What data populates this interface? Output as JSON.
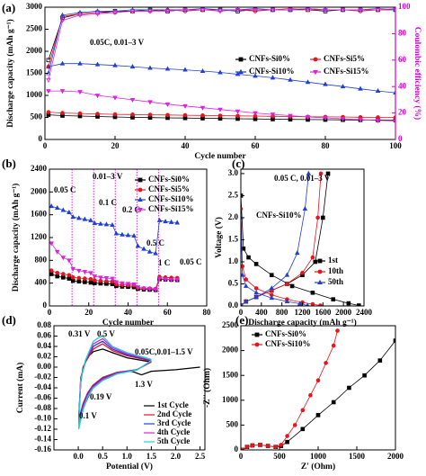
{
  "chart_data": [
    {
      "type": "line",
      "panel_label": "(a)",
      "x_label": "Cycle number",
      "y_label": "Discharge capacity (mAh g⁻¹)",
      "y2_label": "Coulombic efficiency (%)",
      "y2color": "#d000d0",
      "annotations": [
        "0.05C, 0.01–3 V"
      ],
      "xlim": [
        0,
        100
      ],
      "xticks": [
        0,
        20,
        40,
        60,
        80,
        100
      ],
      "ylim": [
        0,
        3000
      ],
      "yticks": [
        0,
        500,
        1000,
        1500,
        2000,
        2500,
        3000
      ],
      "y2lim": [
        0,
        100
      ],
      "y2ticks": [
        0,
        20,
        40,
        60,
        80,
        100
      ],
      "x": [
        1,
        5,
        10,
        15,
        20,
        25,
        30,
        35,
        40,
        45,
        50,
        55,
        60,
        65,
        70,
        75,
        80,
        85,
        90,
        95,
        100
      ],
      "series": [
        {
          "name": "CNFs-Si0%",
          "color": "#000000",
          "marker": "square",
          "values": [
            560,
            540,
            530,
            520,
            510,
            500,
            495,
            490,
            485,
            480,
            475,
            470,
            465,
            460,
            455,
            450,
            448,
            445,
            442,
            440,
            438
          ]
        },
        {
          "name": "CNFs-Si5%",
          "color": "#e8141b",
          "marker": "circle",
          "values": [
            620,
            600,
            590,
            580,
            570,
            565,
            560,
            555,
            550,
            545,
            540,
            535,
            530,
            525,
            520,
            515,
            512,
            510,
            505,
            502,
            500
          ]
        },
        {
          "name": "CNFs-Si10%",
          "color": "#1f3fd6",
          "marker": "triangle-up",
          "values": [
            1650,
            1720,
            1720,
            1700,
            1680,
            1650,
            1620,
            1600,
            1580,
            1550,
            1520,
            1480,
            1440,
            1400,
            1350,
            1300,
            1250,
            1200,
            1150,
            1100,
            1060
          ]
        },
        {
          "name": "CNFs-Si15%",
          "color": "#e020e0",
          "marker": "triangle-down",
          "values": [
            1100,
            1100,
            1080,
            1000,
            950,
            900,
            850,
            800,
            760,
            720,
            680,
            640,
            600,
            570,
            540,
            510,
            490,
            470,
            450,
            430,
            420
          ]
        },
        {
          "axis": "y2",
          "color": "#000000",
          "marker": "square",
          "hollow": true,
          "values": [
            60,
            92,
            95,
            96,
            97,
            97,
            98,
            97,
            98,
            98,
            98,
            97,
            98,
            98,
            98,
            98,
            97,
            98,
            98,
            98,
            98
          ]
        },
        {
          "axis": "y2",
          "color": "#e8141b",
          "marker": "circle",
          "hollow": true,
          "values": [
            55,
            93,
            95,
            96,
            96,
            97,
            97,
            98,
            97,
            98,
            98,
            98,
            97,
            98,
            99,
            98,
            98,
            98,
            97,
            98,
            98
          ]
        },
        {
          "axis": "y2",
          "color": "#1f3fd6",
          "marker": "triangle-up",
          "hollow": true,
          "values": [
            50,
            94,
            96,
            97,
            97,
            98,
            98,
            98,
            98,
            99,
            98,
            98,
            99,
            98,
            98,
            99,
            98,
            98,
            98,
            99,
            98
          ]
        },
        {
          "axis": "y2",
          "color": "#e020e0",
          "marker": "triangle-down",
          "hollow": true,
          "values": [
            45,
            90,
            94,
            95,
            96,
            97,
            97,
            97,
            98,
            98,
            97,
            98,
            98,
            98,
            98,
            99,
            98,
            98,
            98,
            98,
            99
          ]
        }
      ]
    },
    {
      "type": "line",
      "panel_label": "(b)",
      "x_label": "Cycle number",
      "y_label": "Discharge capacity (mAh g⁻¹)",
      "annotations": [
        "0.05 C",
        "0.1 C",
        "0.2 C",
        "0.5 C",
        "1 C",
        "0.05 C",
        "0.01–3 V"
      ],
      "xlim": [
        0,
        80
      ],
      "xticks": [
        0,
        20,
        40,
        60,
        80
      ],
      "ylim": [
        0,
        2400
      ],
      "yticks": [
        0,
        400,
        800,
        1200,
        1600,
        2000,
        2400
      ],
      "vlines": [
        11.5,
        22.5,
        33.5,
        44.5,
        55.5
      ],
      "vline_color": "#e020e0",
      "x": [
        1,
        4,
        7,
        10,
        12,
        15,
        18,
        21,
        23,
        26,
        29,
        32,
        34,
        37,
        40,
        43,
        45,
        48,
        51,
        54,
        56,
        59,
        62,
        65
      ],
      "series": [
        {
          "name": "CNFs-Si0%",
          "color": "#000000",
          "marker": "square",
          "values": [
            560,
            520,
            500,
            480,
            440,
            430,
            420,
            410,
            400,
            395,
            390,
            385,
            350,
            340,
            335,
            330,
            300,
            290,
            285,
            280,
            470,
            465,
            460,
            455
          ]
        },
        {
          "name": "CNFs-Si5%",
          "color": "#e8141b",
          "marker": "circle",
          "values": [
            620,
            580,
            560,
            540,
            500,
            490,
            480,
            470,
            450,
            440,
            435,
            430,
            380,
            370,
            365,
            360,
            320,
            310,
            305,
            300,
            510,
            500,
            495,
            490
          ]
        },
        {
          "name": "CNFs-Si10%",
          "color": "#1f3fd6",
          "marker": "triangle-up",
          "values": [
            1750,
            1720,
            1680,
            1640,
            1560,
            1540,
            1520,
            1500,
            1450,
            1440,
            1430,
            1420,
            1270,
            1250,
            1240,
            1230,
            1050,
            1000,
            950,
            920,
            1500,
            1480,
            1470,
            1460
          ]
        },
        {
          "name": "CNFs-Si15%",
          "color": "#e020e0",
          "marker": "triangle-down",
          "values": [
            1100,
            950,
            850,
            800,
            650,
            620,
            600,
            580,
            520,
            500,
            490,
            480,
            420,
            400,
            390,
            380,
            330,
            310,
            300,
            290,
            480,
            470,
            460,
            460
          ]
        }
      ]
    },
    {
      "type": "line",
      "panel_label": "(c)",
      "x_label": "Discharge capacity (mAh g⁻¹)",
      "y_label": "Voltage (V)",
      "annotations": [
        "0.05 C, 0.01–3 V",
        "CNFs-Si10%"
      ],
      "xlim": [
        0,
        2400
      ],
      "xticks": [
        0,
        400,
        800,
        1200,
        1600,
        2000,
        2400
      ],
      "ylim": [
        0,
        3.1
      ],
      "yticks": [
        {
          "value": 0,
          "label": "0.0"
        },
        0.5,
        {
          "value": 1,
          "label": "1.0"
        },
        1.5,
        {
          "value": 2,
          "label": "2.0"
        },
        2.5,
        {
          "value": 3,
          "label": "3.0"
        }
      ],
      "series": [
        {
          "name": "1st",
          "color": "#000000",
          "marker": "square",
          "x": [
            0,
            50,
            150,
            300,
            600,
            1000,
            1400,
            1800,
            2100,
            2300,
            null,
            0,
            100,
            300,
            600,
            900,
            1200,
            1450,
            1600,
            1700
          ],
          "values": [
            2.5,
            1.3,
            1.1,
            0.95,
            0.7,
            0.45,
            0.3,
            0.15,
            0.06,
            0.01,
            null,
            0.01,
            0.1,
            0.2,
            0.35,
            0.5,
            0.7,
            1.0,
            2.0,
            3.0
          ]
        },
        {
          "name": "10th",
          "color": "#e8141b",
          "marker": "circle",
          "x": [
            0,
            30,
            100,
            300,
            600,
            900,
            1200,
            1400,
            1550,
            null,
            0,
            100,
            300,
            600,
            900,
            1200,
            1400,
            1500,
            1560
          ],
          "values": [
            2.2,
            0.9,
            0.6,
            0.4,
            0.25,
            0.15,
            0.08,
            0.04,
            0.01,
            null,
            0.01,
            0.1,
            0.2,
            0.35,
            0.5,
            0.75,
            1.1,
            2.0,
            3.0
          ]
        },
        {
          "name": "50th",
          "color": "#1f3fd6",
          "marker": "triangle-up",
          "x": [
            0,
            30,
            100,
            300,
            600,
            900,
            1150,
            1300,
            null,
            0,
            100,
            300,
            600,
            900,
            1100,
            1250,
            1320
          ],
          "values": [
            2.0,
            0.7,
            0.45,
            0.3,
            0.18,
            0.1,
            0.05,
            0.01,
            null,
            0.01,
            0.1,
            0.2,
            0.4,
            0.7,
            1.2,
            2.2,
            3.0
          ]
        }
      ]
    },
    {
      "type": "line",
      "panel_label": "(d)",
      "x_label": "Potential (V)",
      "y_label": "Current (mA)",
      "annotations": [
        "0.31 V",
        "0.5 V",
        "1.3 V",
        "0.19 V",
        "0.1 V",
        "0.05C,0.01–1.5 V"
      ],
      "xlim": [
        -0.5,
        2.6
      ],
      "xticks": [
        {
          "value": 0,
          "label": "0.0"
        },
        0.5,
        {
          "value": 1,
          "label": "1.0"
        },
        1.5,
        {
          "value": 2,
          "label": "2.0"
        },
        2.5
      ],
      "ylim": [
        -0.16,
        0.08
      ],
      "yticks": [
        -0.16,
        -0.14,
        -0.12,
        {
          "value": -0.1,
          "label": "-0.10"
        },
        -0.08,
        -0.06,
        -0.04,
        -0.02,
        {
          "value": 0,
          "label": "0.00"
        },
        0.02,
        0.04,
        0.06,
        0.08
      ],
      "series": [
        {
          "name": "1st  Cycle",
          "color": "#000000",
          "x": [
            2.5,
            2.0,
            1.5,
            1.3,
            1.1,
            0.8,
            0.5,
            0.3,
            0.19,
            0.1,
            0.01,
            0.05,
            0.1,
            0.2,
            0.31,
            0.5,
            0.7,
            1.0,
            1.5
          ],
          "values": [
            0.0,
            -0.005,
            -0.008,
            -0.015,
            -0.008,
            -0.01,
            -0.02,
            -0.04,
            -0.06,
            -0.08,
            -0.1,
            -0.03,
            0.0,
            0.02,
            0.03,
            0.035,
            0.028,
            0.018,
            0.01
          ]
        },
        {
          "name": "2nd Cycle",
          "color": "#e8141b",
          "x": [
            1.5,
            1.2,
            0.8,
            0.5,
            0.3,
            0.19,
            0.1,
            0.01,
            0.05,
            0.15,
            0.31,
            0.4,
            0.5,
            0.7,
            1.0,
            1.5
          ],
          "values": [
            0.01,
            -0.005,
            -0.01,
            -0.02,
            -0.035,
            -0.05,
            -0.07,
            -0.1,
            -0.02,
            0.01,
            0.035,
            0.04,
            0.045,
            0.032,
            0.022,
            0.012
          ]
        },
        {
          "name": "3rd Cycle",
          "color": "#1f3fd6",
          "x": [
            1.5,
            1.2,
            0.8,
            0.5,
            0.3,
            0.19,
            0.1,
            0.01,
            0.05,
            0.15,
            0.31,
            0.4,
            0.5,
            0.7,
            1.0,
            1.5
          ],
          "values": [
            0.011,
            -0.005,
            -0.011,
            -0.022,
            -0.037,
            -0.052,
            -0.074,
            -0.105,
            -0.022,
            0.012,
            0.04,
            0.045,
            0.05,
            0.035,
            0.024,
            0.013
          ]
        },
        {
          "name": "4th Cycle",
          "color": "#e020e0",
          "x": [
            1.5,
            1.2,
            0.8,
            0.5,
            0.3,
            0.19,
            0.1,
            0.01,
            0.05,
            0.15,
            0.31,
            0.4,
            0.5,
            0.7,
            1.0,
            1.5
          ],
          "values": [
            0.012,
            -0.006,
            -0.012,
            -0.024,
            -0.039,
            -0.055,
            -0.078,
            -0.11,
            -0.024,
            0.013,
            0.045,
            0.05,
            0.055,
            0.038,
            0.026,
            0.014
          ]
        },
        {
          "name": "5th Cycle",
          "color": "#22d0d0",
          "x": [
            1.5,
            1.2,
            0.8,
            0.5,
            0.3,
            0.19,
            0.1,
            0.01,
            0.05,
            0.15,
            0.31,
            0.4,
            0.5,
            0.7,
            1.0,
            1.5
          ],
          "values": [
            0.013,
            -0.006,
            -0.013,
            -0.026,
            -0.041,
            -0.058,
            -0.082,
            -0.12,
            -0.026,
            0.014,
            0.05,
            0.056,
            0.06,
            0.04,
            0.028,
            0.015
          ]
        }
      ]
    },
    {
      "type": "line",
      "panel_label": "(e)",
      "x_label": "Z' (Ohm)",
      "y_label": "-Z'' (Ohm)",
      "xlim": [
        0,
        2000
      ],
      "xticks": [
        0,
        500,
        1000,
        1500,
        2000
      ],
      "ylim": [
        0,
        2500
      ],
      "yticks": [
        0,
        500,
        1000,
        1500,
        2000,
        2500
      ],
      "series": [
        {
          "name": "CNFs-Si0%",
          "color": "#000000",
          "marker": "square",
          "x": [
            20,
            80,
            150,
            250,
            350,
            450,
            520,
            600,
            800,
            1000,
            1200,
            1400,
            1600,
            1800,
            2000
          ],
          "values": [
            0,
            60,
            90,
            100,
            80,
            60,
            80,
            160,
            420,
            700,
            960,
            1250,
            1500,
            1800,
            2200
          ]
        },
        {
          "name": "CNFs-Si10%",
          "color": "#e8141b",
          "marker": "circle",
          "x": [
            20,
            80,
            150,
            250,
            350,
            450,
            520,
            600,
            700,
            800,
            900,
            1000,
            1100,
            1200,
            1250
          ],
          "values": [
            0,
            60,
            90,
            100,
            80,
            60,
            100,
            280,
            500,
            800,
            1100,
            1400,
            1750,
            2100,
            2400
          ]
        }
      ]
    }
  ]
}
